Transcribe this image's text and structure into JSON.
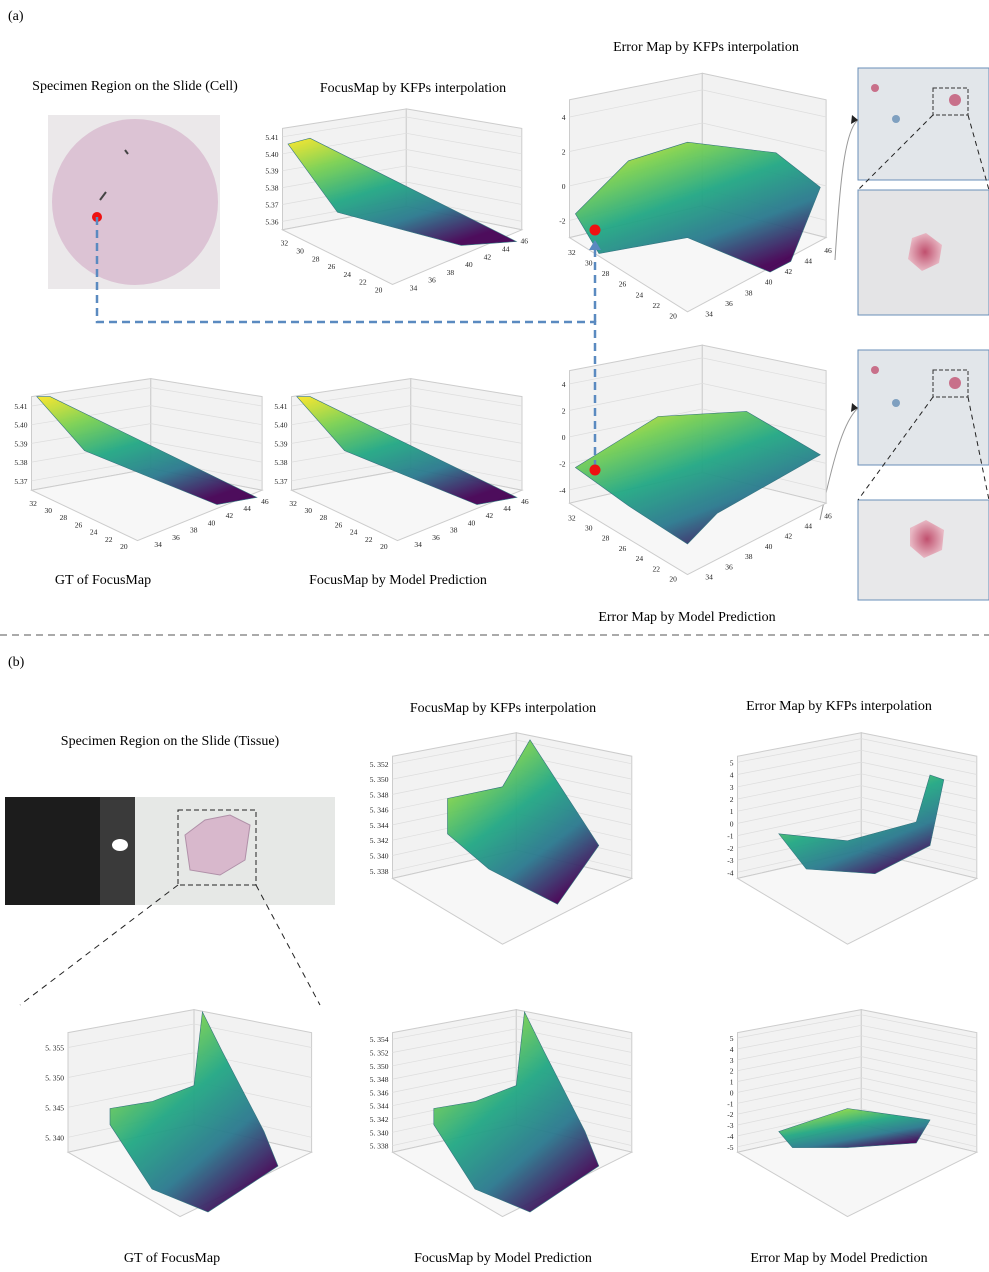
{
  "panel_a": {
    "label": "(a)",
    "specimen_title": "Specimen Region on the Slide (Cell)",
    "plots": [
      {
        "title": "FocusMap by KFPs interpolation",
        "zticks": [
          "5.41",
          "5.40",
          "5.39",
          "5.38",
          "5.37",
          "5.36"
        ],
        "xticks": [
          "32",
          "30",
          "28",
          "26",
          "24",
          "22",
          "20"
        ],
        "yticks": [
          "34",
          "36",
          "38",
          "40",
          "42",
          "44",
          "46"
        ]
      },
      {
        "title": "Error Map by KFPs interpolation",
        "zticks": [
          "4",
          "2",
          "0",
          "-2"
        ],
        "xticks": [
          "32",
          "30",
          "28",
          "26",
          "24",
          "22",
          "20"
        ],
        "yticks": [
          "34",
          "36",
          "38",
          "40",
          "42",
          "44",
          "46"
        ]
      },
      {
        "title": "GT of FocusMap",
        "zticks": [
          "5.41",
          "5.40",
          "5.39",
          "5.38",
          "5.37"
        ],
        "xticks": [
          "32",
          "30",
          "28",
          "26",
          "24",
          "22",
          "20"
        ],
        "yticks": [
          "34",
          "36",
          "38",
          "40",
          "42",
          "44",
          "46"
        ]
      },
      {
        "title": "FocusMap by Model Prediction",
        "zticks": [
          "5.41",
          "5.40",
          "5.39",
          "5.38",
          "5.37"
        ],
        "xticks": [
          "32",
          "30",
          "28",
          "26",
          "24",
          "22",
          "20"
        ],
        "yticks": [
          "34",
          "36",
          "38",
          "40",
          "42",
          "44",
          "46"
        ]
      },
      {
        "title": "Error Map by Model Prediction",
        "zticks": [
          "4",
          "2",
          "0",
          "-2",
          "-4"
        ],
        "xticks": [
          "32",
          "30",
          "28",
          "26",
          "24",
          "22",
          "20"
        ],
        "yticks": [
          "34",
          "36",
          "38",
          "40",
          "42",
          "44",
          "46"
        ]
      }
    ]
  },
  "panel_b": {
    "label": "(b)",
    "specimen_title": "Specimen Region on the Slide (Tissue)",
    "plots": [
      {
        "title": "FocusMap by KFPs interpolation",
        "zticks": [
          "5. 352",
          "5. 350",
          "5. 348",
          "5. 346",
          "5. 344",
          "5. 342",
          "5. 340",
          "5. 338"
        ]
      },
      {
        "title": "Error Map by KFPs interpolation",
        "zticks": [
          "5",
          "4",
          "3",
          "2",
          "1",
          "0",
          "-1",
          "-2",
          "-3",
          "-4"
        ]
      },
      {
        "title": "GT of FocusMap",
        "zticks": [
          "5. 355",
          "5. 350",
          "5. 345",
          "5. 340"
        ]
      },
      {
        "title": "FocusMap by Model Prediction",
        "zticks": [
          "5. 354",
          "5. 352",
          "5. 350",
          "5. 348",
          "5. 346",
          "5. 344",
          "5. 342",
          "5. 340",
          "5. 338"
        ]
      },
      {
        "title": "Error Map by Model Prediction",
        "zticks": [
          "5",
          "4",
          "3",
          "2",
          "1",
          "0",
          "-1",
          "-2",
          "-3",
          "-4",
          "-5"
        ]
      }
    ]
  }
}
